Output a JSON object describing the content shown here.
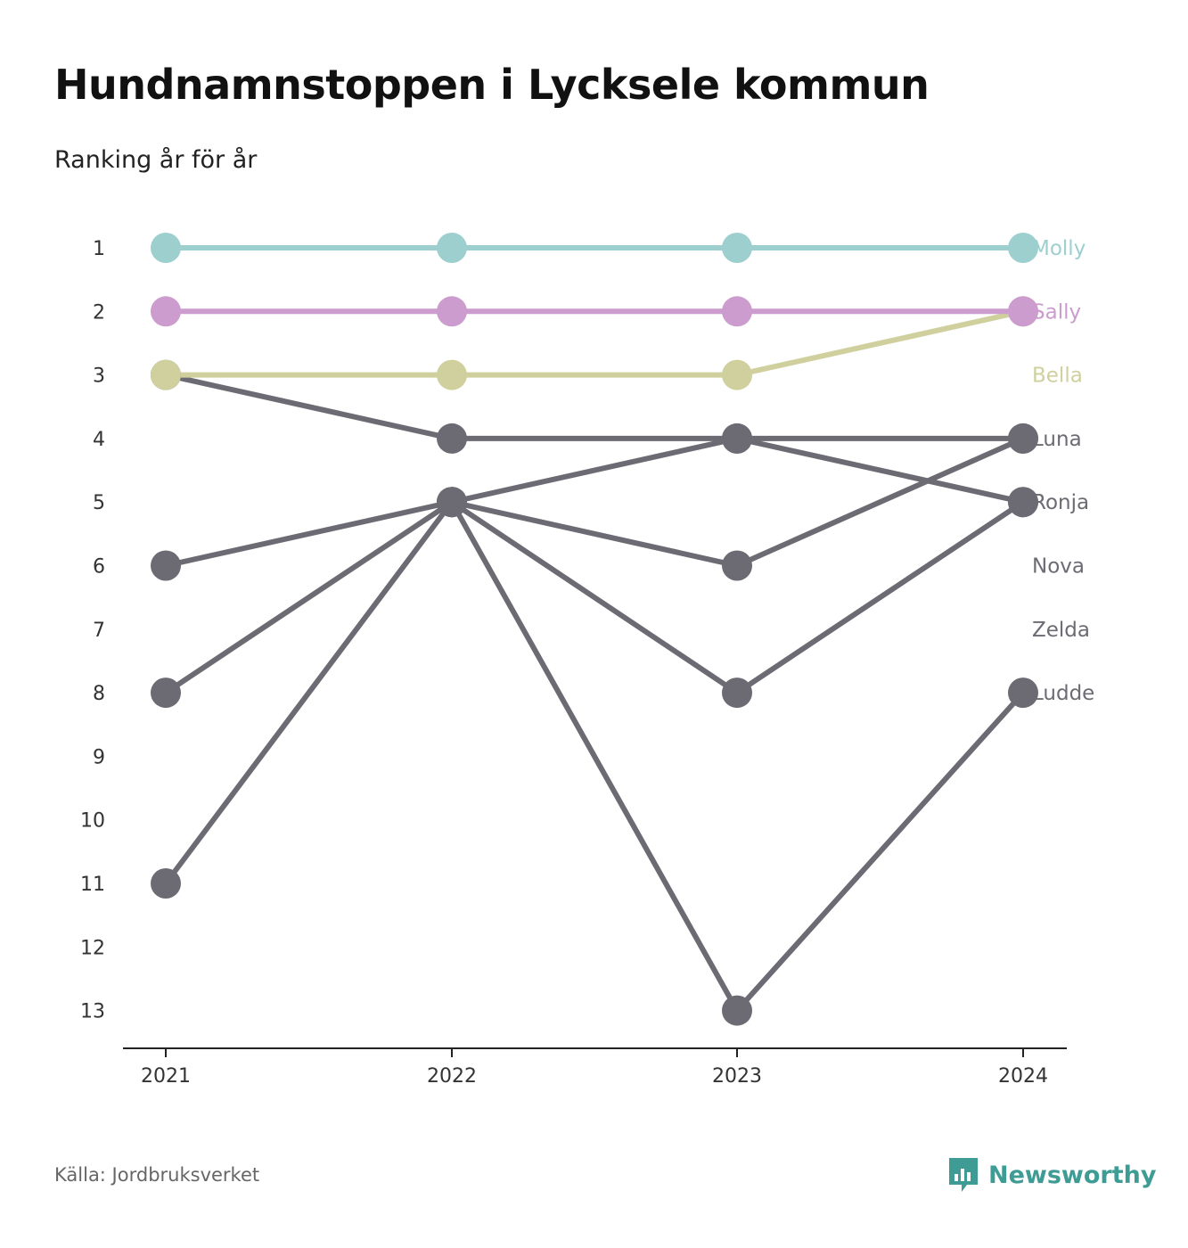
{
  "title": "Hundnamnstoppen i Lycksele kommun",
  "subtitle": "Ranking år för år",
  "source": "Källa: Jordbruksverket",
  "brand": {
    "name": "Newsworthy",
    "icon": "newsworthy-logo-icon",
    "color": "#3e9c95"
  },
  "colors": {
    "molly": "#9dcfcf",
    "sally": "#cc9ccf",
    "bella": "#cfd09d",
    "other": "#6c6b73"
  },
  "chart_data": {
    "type": "line",
    "categories": [
      "2021",
      "2022",
      "2023",
      "2024"
    ],
    "y_ticks": [
      "1",
      "2",
      "3",
      "4",
      "5",
      "6",
      "7",
      "8",
      "9",
      "10",
      "11",
      "12",
      "13"
    ],
    "ylim": [
      1,
      13
    ],
    "y_reversed": true,
    "series": [
      {
        "name": "Ludde",
        "values": [
          11,
          5,
          13,
          8
        ],
        "color": "#6c6b73"
      },
      {
        "name": "Zelda",
        "values": [
          8,
          5,
          8,
          5
        ],
        "color": "#6c6b73"
      },
      {
        "name": "Nova",
        "values": [
          6,
          5,
          6,
          4
        ],
        "color": "#6c6b73"
      },
      {
        "name": "Ronja",
        "values": [
          3,
          4,
          4,
          5
        ],
        "color": "#6c6b73"
      },
      {
        "name": "Luna",
        "values": [
          null,
          5,
          4,
          4
        ],
        "color": "#6c6b73"
      },
      {
        "name": "Bella",
        "values": [
          3,
          3,
          3,
          2
        ],
        "color": "#cfd09d"
      },
      {
        "name": "Sally",
        "values": [
          2,
          2,
          2,
          2
        ],
        "color": "#cc9ccf"
      },
      {
        "name": "Molly",
        "values": [
          1,
          1,
          1,
          1
        ],
        "color": "#9dcfcf"
      }
    ],
    "labels": [
      {
        "text": "Molly",
        "rank": 1,
        "color": "#9dcfcf"
      },
      {
        "text": "Sally",
        "rank": 2,
        "color": "#cc9ccf"
      },
      {
        "text": "Bella",
        "rank": 3,
        "color": "#cfd09d"
      },
      {
        "text": "Luna",
        "rank": 4,
        "color": "#6c6b73"
      },
      {
        "text": "Ronja",
        "rank": 5,
        "color": "#6c6b73"
      },
      {
        "text": "Nova",
        "rank": 6,
        "color": "#6c6b73"
      },
      {
        "text": "Zelda",
        "rank": 7,
        "color": "#6c6b73"
      },
      {
        "text": "Ludde",
        "rank": 8,
        "color": "#6c6b73"
      }
    ]
  }
}
